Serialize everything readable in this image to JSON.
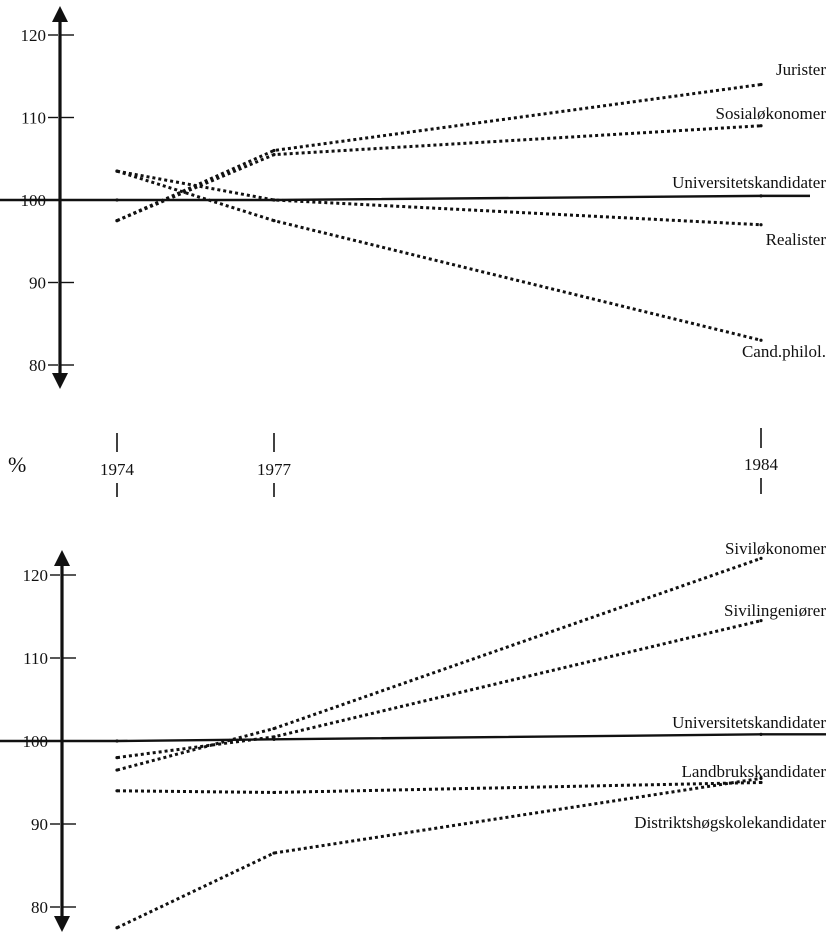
{
  "unit_label": "%",
  "years": [
    "1974",
    "1977",
    "1984"
  ],
  "colors": {
    "ink": "#111111"
  },
  "chart_data": [
    {
      "type": "line",
      "title": "",
      "xlabel": "",
      "ylabel": "%",
      "x": [
        1974,
        1977,
        1984
      ],
      "ylim": [
        77,
        124
      ],
      "yticks": [
        "120",
        "110",
        "100",
        "90",
        "80"
      ],
      "series": [
        {
          "name": "Jurister",
          "style": "dotted",
          "values": [
            97.5,
            106,
            114
          ]
        },
        {
          "name": "Sosialøkonomer",
          "style": "dotted",
          "values": [
            97.5,
            105.5,
            109
          ]
        },
        {
          "name": "Universitetskandidater",
          "style": "solid",
          "values": [
            100,
            100,
            100.5
          ]
        },
        {
          "name": "Realister",
          "style": "dotted",
          "values": [
            103.5,
            100,
            97
          ]
        },
        {
          "name": "Cand.philol.",
          "style": "dotted",
          "values": [
            103.5,
            97.5,
            83
          ]
        }
      ]
    },
    {
      "type": "line",
      "title": "",
      "xlabel": "",
      "ylabel": "%",
      "x": [
        1974,
        1977,
        1984
      ],
      "ylim": [
        77,
        124
      ],
      "yticks": [
        "120",
        "110",
        "100",
        "90",
        "80"
      ],
      "series": [
        {
          "name": "Siviløkonomer",
          "style": "dotted",
          "values": [
            96.5,
            101.5,
            122
          ]
        },
        {
          "name": "Sivilingeniører",
          "style": "dotted",
          "values": [
            98,
            100.5,
            114.5
          ]
        },
        {
          "name": "Universitetskandidater",
          "style": "solid",
          "values": [
            100,
            100.2,
            100.8
          ]
        },
        {
          "name": "Landbrukskandidater",
          "style": "dotted",
          "values": [
            94,
            93.8,
            95
          ]
        },
        {
          "name": "Distriktshøgskolekandidater",
          "style": "dotted",
          "values": [
            77.5,
            86.5,
            95.5
          ]
        }
      ]
    }
  ]
}
